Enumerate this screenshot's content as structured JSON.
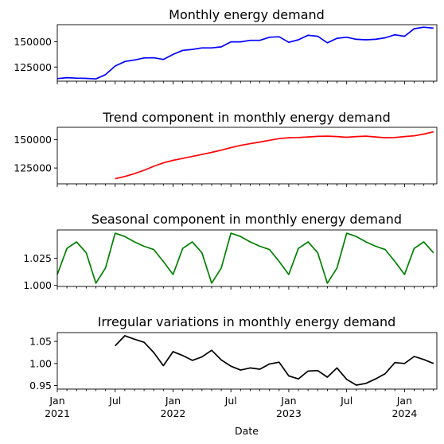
{
  "chart_data": [
    {
      "type": "line",
      "title": "Monthly energy demand",
      "color": "#0000ff",
      "ylim": [
        111000,
        167000
      ],
      "y_ticks": [
        125000,
        150000
      ],
      "y_tick_labels": [
        "125000",
        "150000"
      ],
      "series": [
        {
          "x": [
            "2021-01",
            "2021-02",
            "2021-03",
            "2021-04",
            "2021-05",
            "2021-06",
            "2021-07",
            "2021-08",
            "2021-09",
            "2021-10",
            "2021-11",
            "2021-12",
            "2022-01",
            "2022-02",
            "2022-03",
            "2022-04",
            "2022-05",
            "2022-06",
            "2022-07",
            "2022-08",
            "2022-09",
            "2022-10",
            "2022-11",
            "2022-12",
            "2023-01",
            "2023-02",
            "2023-03",
            "2023-04",
            "2023-05",
            "2023-06",
            "2023-07",
            "2023-08",
            "2023-09",
            "2023-10",
            "2023-11",
            "2023-12",
            "2024-01",
            "2024-02",
            "2024-03",
            "2024-04"
          ],
          "values": [
            113500,
            114500,
            114000,
            113800,
            113200,
            117500,
            126000,
            130500,
            132000,
            134000,
            134200,
            132500,
            137500,
            141500,
            142500,
            144000,
            144000,
            145000,
            150000,
            150000,
            151500,
            151500,
            154500,
            155000,
            149500,
            152000,
            156500,
            155500,
            149000,
            153500,
            154500,
            152500,
            152000,
            152500,
            154000,
            157000,
            155500,
            163000,
            164500,
            163500
          ]
        }
      ]
    },
    {
      "type": "line",
      "title": "Trend component in monthly energy demand",
      "color": "#ff0000",
      "ylim": [
        111000,
        161000
      ],
      "y_ticks": [
        125000,
        150000
      ],
      "y_tick_labels": [
        "125000",
        "150000"
      ],
      "series": [
        {
          "x": [
            "2021-07",
            "2021-08",
            "2021-09",
            "2021-10",
            "2021-11",
            "2021-12",
            "2022-01",
            "2022-02",
            "2022-03",
            "2022-04",
            "2022-05",
            "2022-06",
            "2022-07",
            "2022-08",
            "2022-09",
            "2022-10",
            "2022-11",
            "2022-12",
            "2023-01",
            "2023-02",
            "2023-03",
            "2023-04",
            "2023-05",
            "2023-06",
            "2023-07",
            "2023-08",
            "2023-09",
            "2023-10",
            "2023-11",
            "2023-12",
            "2024-01",
            "2024-02",
            "2024-03",
            "2024-04"
          ],
          "values": [
            115500,
            117500,
            120000,
            123000,
            126500,
            129500,
            131800,
            133500,
            135200,
            137000,
            138800,
            140800,
            143000,
            145000,
            146500,
            148000,
            149500,
            151000,
            151800,
            152000,
            152500,
            153000,
            153200,
            152800,
            152200,
            152800,
            153200,
            152500,
            151800,
            152000,
            152800,
            153500,
            155000,
            157000
          ]
        }
      ]
    },
    {
      "type": "line",
      "title": "Seasonal component in monthly energy demand",
      "color": "#008000",
      "ylim": [
        0.999,
        1.051
      ],
      "y_ticks": [
        1.0,
        1.025
      ],
      "y_tick_labels": [
        "1.000",
        "1.025"
      ],
      "series": [
        {
          "x": [
            "2021-01",
            "2021-02",
            "2021-03",
            "2021-04",
            "2021-05",
            "2021-06",
            "2021-07",
            "2021-08",
            "2021-09",
            "2021-10",
            "2021-11",
            "2021-12",
            "2022-01",
            "2022-02",
            "2022-03",
            "2022-04",
            "2022-05",
            "2022-06",
            "2022-07",
            "2022-08",
            "2022-09",
            "2022-10",
            "2022-11",
            "2022-12",
            "2023-01",
            "2023-02",
            "2023-03",
            "2023-04",
            "2023-05",
            "2023-06",
            "2023-07",
            "2023-08",
            "2023-09",
            "2023-10",
            "2023-11",
            "2023-12",
            "2024-01",
            "2024-02",
            "2024-03",
            "2024-04"
          ],
          "values": [
            1.01,
            1.034,
            1.04,
            1.03,
            1.002,
            1.016,
            1.048,
            1.045,
            1.04,
            1.036,
            1.033,
            1.022,
            1.01,
            1.034,
            1.04,
            1.03,
            1.002,
            1.016,
            1.048,
            1.045,
            1.04,
            1.036,
            1.033,
            1.022,
            1.01,
            1.034,
            1.04,
            1.03,
            1.002,
            1.016,
            1.048,
            1.045,
            1.04,
            1.036,
            1.033,
            1.022,
            1.01,
            1.034,
            1.04,
            1.03
          ]
        }
      ]
    },
    {
      "type": "line",
      "title": "Irregular variations in monthly energy demand",
      "color": "#000000",
      "ylim": [
        0.942,
        1.07
      ],
      "y_ticks": [
        0.95,
        1.0,
        1.05
      ],
      "y_tick_labels": [
        "0.95",
        "1.00",
        "1.05"
      ],
      "xlabel": "Date",
      "x_tick_labels": [
        {
          "x": "2021-01",
          "line1": "Jan",
          "line2": "2021"
        },
        {
          "x": "2021-07",
          "line1": "Jul",
          "line2": ""
        },
        {
          "x": "2022-01",
          "line1": "Jan",
          "line2": "2022"
        },
        {
          "x": "2022-07",
          "line1": "Jul",
          "line2": ""
        },
        {
          "x": "2023-01",
          "line1": "Jan",
          "line2": "2023"
        },
        {
          "x": "2023-07",
          "line1": "Jul",
          "line2": ""
        },
        {
          "x": "2024-01",
          "line1": "Jan",
          "line2": "2024"
        }
      ],
      "series": [
        {
          "x": [
            "2021-07",
            "2021-08",
            "2021-09",
            "2021-10",
            "2021-11",
            "2021-12",
            "2022-01",
            "2022-02",
            "2022-03",
            "2022-04",
            "2022-05",
            "2022-06",
            "2022-07",
            "2022-08",
            "2022-09",
            "2022-10",
            "2022-11",
            "2022-12",
            "2023-01",
            "2023-02",
            "2023-03",
            "2023-04",
            "2023-05",
            "2023-06",
            "2023-07",
            "2023-08",
            "2023-09",
            "2023-10",
            "2023-11",
            "2023-12",
            "2024-01",
            "2024-02",
            "2024-03",
            "2024-04"
          ],
          "values": [
            1.04,
            1.063,
            1.055,
            1.048,
            1.025,
            0.995,
            1.027,
            1.018,
            1.007,
            1.015,
            1.03,
            1.008,
            0.994,
            0.985,
            0.99,
            0.987,
            0.999,
            1.003,
            0.972,
            0.965,
            0.983,
            0.984,
            0.969,
            0.99,
            0.964,
            0.951,
            0.955,
            0.965,
            0.977,
            1.002,
            1.0,
            1.016,
            1.009,
            1.0
          ]
        }
      ]
    }
  ]
}
